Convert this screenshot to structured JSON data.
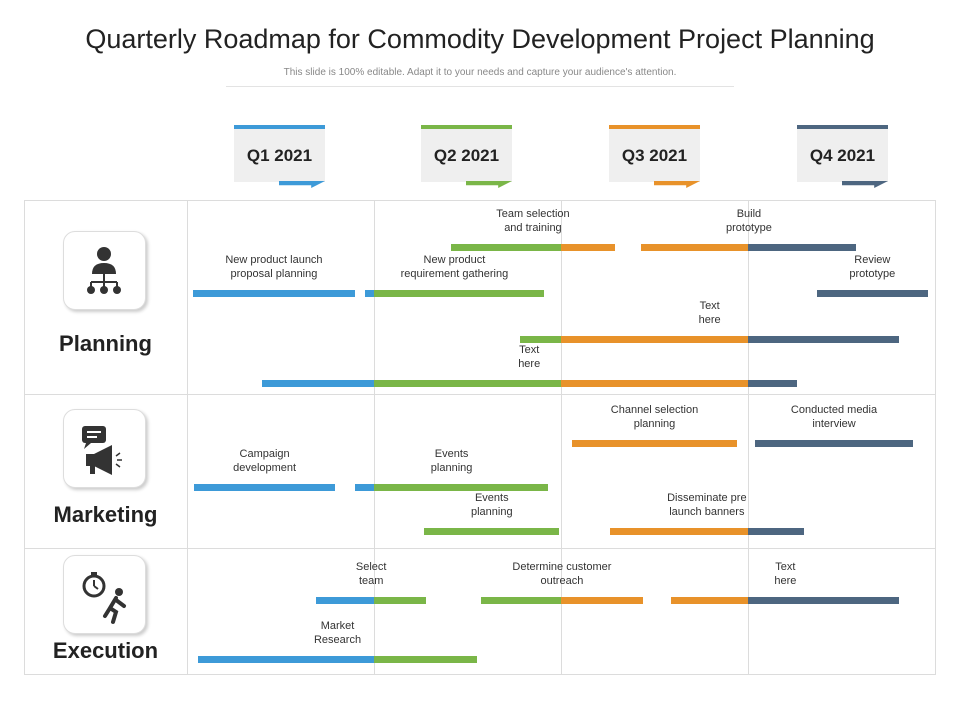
{
  "title": "Quarterly Roadmap for Commodity Development Project Planning",
  "subtitle": "This slide is 100% editable. Adapt it to your needs and capture your audience's attention.",
  "quarters": [
    {
      "label": "Q1 2021",
      "color": "#3d9ad8"
    },
    {
      "label": "Q2 2021",
      "color": "#7ab648"
    },
    {
      "label": "Q3 2021",
      "color": "#e8922a"
    },
    {
      "label": "Q4 2021",
      "color": "#4d6680"
    }
  ],
  "sections": [
    {
      "name": "Planning",
      "icon": "org-chart-person-icon",
      "tasks": [
        {
          "label": [
            "Team selection",
            "and training"
          ],
          "start": 1.41,
          "end": 2.29,
          "lane": 0
        },
        {
          "label": [
            "Build",
            "prototype"
          ],
          "start": 2.43,
          "end": 3.58,
          "lane": 0
        },
        {
          "label": [
            "New product launch",
            "proposal planning"
          ],
          "start": 0.03,
          "end": 0.9,
          "lane": 1
        },
        {
          "label": [
            "New product",
            "requirement gathering"
          ],
          "start": 0.95,
          "end": 1.91,
          "lane": 1
        },
        {
          "label": [
            "Review",
            "prototype"
          ],
          "start": 3.37,
          "end": 3.96,
          "lane": 1
        },
        {
          "label": [
            "Text",
            "here"
          ],
          "start": 1.78,
          "end": 3.81,
          "lane": 2
        },
        {
          "label": [
            "Text",
            "here"
          ],
          "start": 0.4,
          "end": 3.26,
          "lane": 3
        }
      ]
    },
    {
      "name": "Marketing",
      "icon": "megaphone-chat-icon",
      "tasks": [
        {
          "label": [
            "Channel selection",
            "planning"
          ],
          "start": 2.06,
          "end": 2.94,
          "lane": 0
        },
        {
          "label": [
            "Conducted media",
            "interview"
          ],
          "start": 3.04,
          "end": 3.88,
          "lane": 0
        },
        {
          "label": [
            "Campaign",
            "development"
          ],
          "start": 0.04,
          "end": 0.79,
          "lane": 1
        },
        {
          "label": [
            "Events",
            "planning"
          ],
          "start": 0.9,
          "end": 1.93,
          "lane": 1
        },
        {
          "label": [
            "Events",
            "planning"
          ],
          "start": 1.27,
          "end": 1.99,
          "lane": 2
        },
        {
          "label": [
            "Disseminate pre",
            "launch banners"
          ],
          "start": 2.26,
          "end": 3.3,
          "lane": 2
        }
      ]
    },
    {
      "name": "Execution",
      "icon": "stopwatch-runner-icon",
      "tasks": [
        {
          "label": [
            "Select",
            "team"
          ],
          "start": 0.69,
          "end": 1.28,
          "lane": 0
        },
        {
          "label": [
            "Determine customer",
            "outreach"
          ],
          "start": 1.57,
          "end": 2.44,
          "lane": 0
        },
        {
          "label": [
            "Text",
            "here"
          ],
          "start": 2.59,
          "end": 3.81,
          "lane": 0
        },
        {
          "label": [
            "Market",
            "Research"
          ],
          "start": 0.06,
          "end": 1.55,
          "lane": 1
        }
      ]
    }
  ]
}
